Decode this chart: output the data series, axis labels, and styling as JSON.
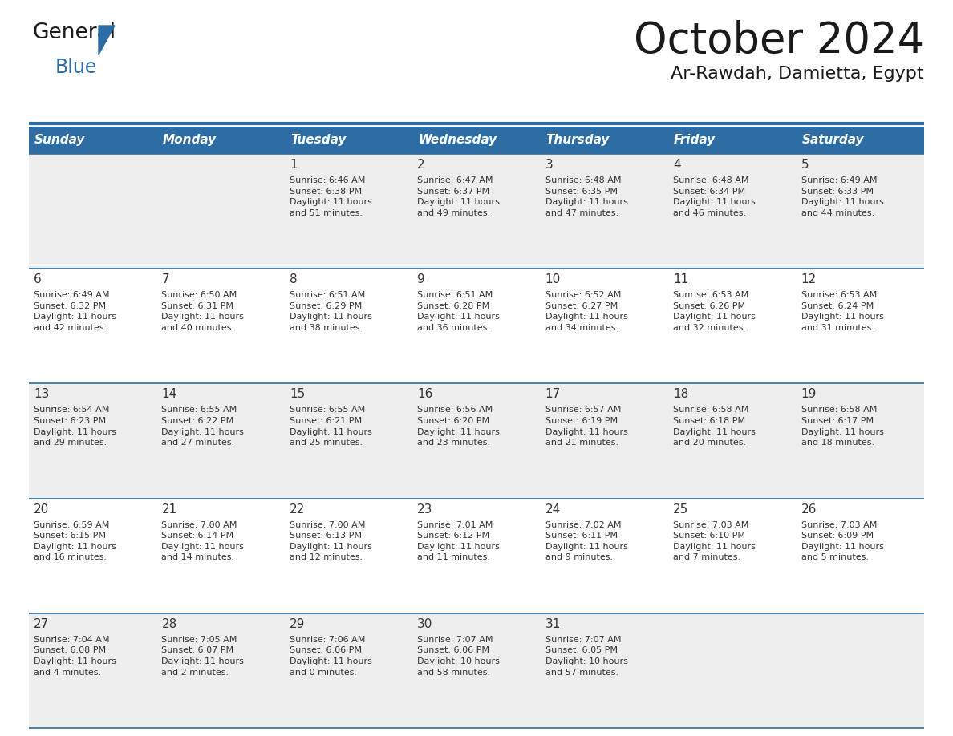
{
  "title": "October 2024",
  "subtitle": "Ar-Rawdah, Damietta, Egypt",
  "header_bg": "#2e6da4",
  "header_text_color": "#ffffff",
  "cell_bg_odd": "#eeeeee",
  "cell_bg_even": "#ffffff",
  "text_color": "#333333",
  "line_color": "#2e6da4",
  "logo_general_color": "#1a1a1a",
  "logo_blue_color": "#2e6da4",
  "logo_triangle_color": "#2e6da4",
  "days_of_week": [
    "Sunday",
    "Monday",
    "Tuesday",
    "Wednesday",
    "Thursday",
    "Friday",
    "Saturday"
  ],
  "weeks": [
    [
      {
        "day": "",
        "info": ""
      },
      {
        "day": "",
        "info": ""
      },
      {
        "day": "1",
        "info": "Sunrise: 6:46 AM\nSunset: 6:38 PM\nDaylight: 11 hours\nand 51 minutes."
      },
      {
        "day": "2",
        "info": "Sunrise: 6:47 AM\nSunset: 6:37 PM\nDaylight: 11 hours\nand 49 minutes."
      },
      {
        "day": "3",
        "info": "Sunrise: 6:48 AM\nSunset: 6:35 PM\nDaylight: 11 hours\nand 47 minutes."
      },
      {
        "day": "4",
        "info": "Sunrise: 6:48 AM\nSunset: 6:34 PM\nDaylight: 11 hours\nand 46 minutes."
      },
      {
        "day": "5",
        "info": "Sunrise: 6:49 AM\nSunset: 6:33 PM\nDaylight: 11 hours\nand 44 minutes."
      }
    ],
    [
      {
        "day": "6",
        "info": "Sunrise: 6:49 AM\nSunset: 6:32 PM\nDaylight: 11 hours\nand 42 minutes."
      },
      {
        "day": "7",
        "info": "Sunrise: 6:50 AM\nSunset: 6:31 PM\nDaylight: 11 hours\nand 40 minutes."
      },
      {
        "day": "8",
        "info": "Sunrise: 6:51 AM\nSunset: 6:29 PM\nDaylight: 11 hours\nand 38 minutes."
      },
      {
        "day": "9",
        "info": "Sunrise: 6:51 AM\nSunset: 6:28 PM\nDaylight: 11 hours\nand 36 minutes."
      },
      {
        "day": "10",
        "info": "Sunrise: 6:52 AM\nSunset: 6:27 PM\nDaylight: 11 hours\nand 34 minutes."
      },
      {
        "day": "11",
        "info": "Sunrise: 6:53 AM\nSunset: 6:26 PM\nDaylight: 11 hours\nand 32 minutes."
      },
      {
        "day": "12",
        "info": "Sunrise: 6:53 AM\nSunset: 6:24 PM\nDaylight: 11 hours\nand 31 minutes."
      }
    ],
    [
      {
        "day": "13",
        "info": "Sunrise: 6:54 AM\nSunset: 6:23 PM\nDaylight: 11 hours\nand 29 minutes."
      },
      {
        "day": "14",
        "info": "Sunrise: 6:55 AM\nSunset: 6:22 PM\nDaylight: 11 hours\nand 27 minutes."
      },
      {
        "day": "15",
        "info": "Sunrise: 6:55 AM\nSunset: 6:21 PM\nDaylight: 11 hours\nand 25 minutes."
      },
      {
        "day": "16",
        "info": "Sunrise: 6:56 AM\nSunset: 6:20 PM\nDaylight: 11 hours\nand 23 minutes."
      },
      {
        "day": "17",
        "info": "Sunrise: 6:57 AM\nSunset: 6:19 PM\nDaylight: 11 hours\nand 21 minutes."
      },
      {
        "day": "18",
        "info": "Sunrise: 6:58 AM\nSunset: 6:18 PM\nDaylight: 11 hours\nand 20 minutes."
      },
      {
        "day": "19",
        "info": "Sunrise: 6:58 AM\nSunset: 6:17 PM\nDaylight: 11 hours\nand 18 minutes."
      }
    ],
    [
      {
        "day": "20",
        "info": "Sunrise: 6:59 AM\nSunset: 6:15 PM\nDaylight: 11 hours\nand 16 minutes."
      },
      {
        "day": "21",
        "info": "Sunrise: 7:00 AM\nSunset: 6:14 PM\nDaylight: 11 hours\nand 14 minutes."
      },
      {
        "day": "22",
        "info": "Sunrise: 7:00 AM\nSunset: 6:13 PM\nDaylight: 11 hours\nand 12 minutes."
      },
      {
        "day": "23",
        "info": "Sunrise: 7:01 AM\nSunset: 6:12 PM\nDaylight: 11 hours\nand 11 minutes."
      },
      {
        "day": "24",
        "info": "Sunrise: 7:02 AM\nSunset: 6:11 PM\nDaylight: 11 hours\nand 9 minutes."
      },
      {
        "day": "25",
        "info": "Sunrise: 7:03 AM\nSunset: 6:10 PM\nDaylight: 11 hours\nand 7 minutes."
      },
      {
        "day": "26",
        "info": "Sunrise: 7:03 AM\nSunset: 6:09 PM\nDaylight: 11 hours\nand 5 minutes."
      }
    ],
    [
      {
        "day": "27",
        "info": "Sunrise: 7:04 AM\nSunset: 6:08 PM\nDaylight: 11 hours\nand 4 minutes."
      },
      {
        "day": "28",
        "info": "Sunrise: 7:05 AM\nSunset: 6:07 PM\nDaylight: 11 hours\nand 2 minutes."
      },
      {
        "day": "29",
        "info": "Sunrise: 7:06 AM\nSunset: 6:06 PM\nDaylight: 11 hours\nand 0 minutes."
      },
      {
        "day": "30",
        "info": "Sunrise: 7:07 AM\nSunset: 6:06 PM\nDaylight: 10 hours\nand 58 minutes."
      },
      {
        "day": "31",
        "info": "Sunrise: 7:07 AM\nSunset: 6:05 PM\nDaylight: 10 hours\nand 57 minutes."
      },
      {
        "day": "",
        "info": ""
      },
      {
        "day": "",
        "info": ""
      }
    ]
  ]
}
